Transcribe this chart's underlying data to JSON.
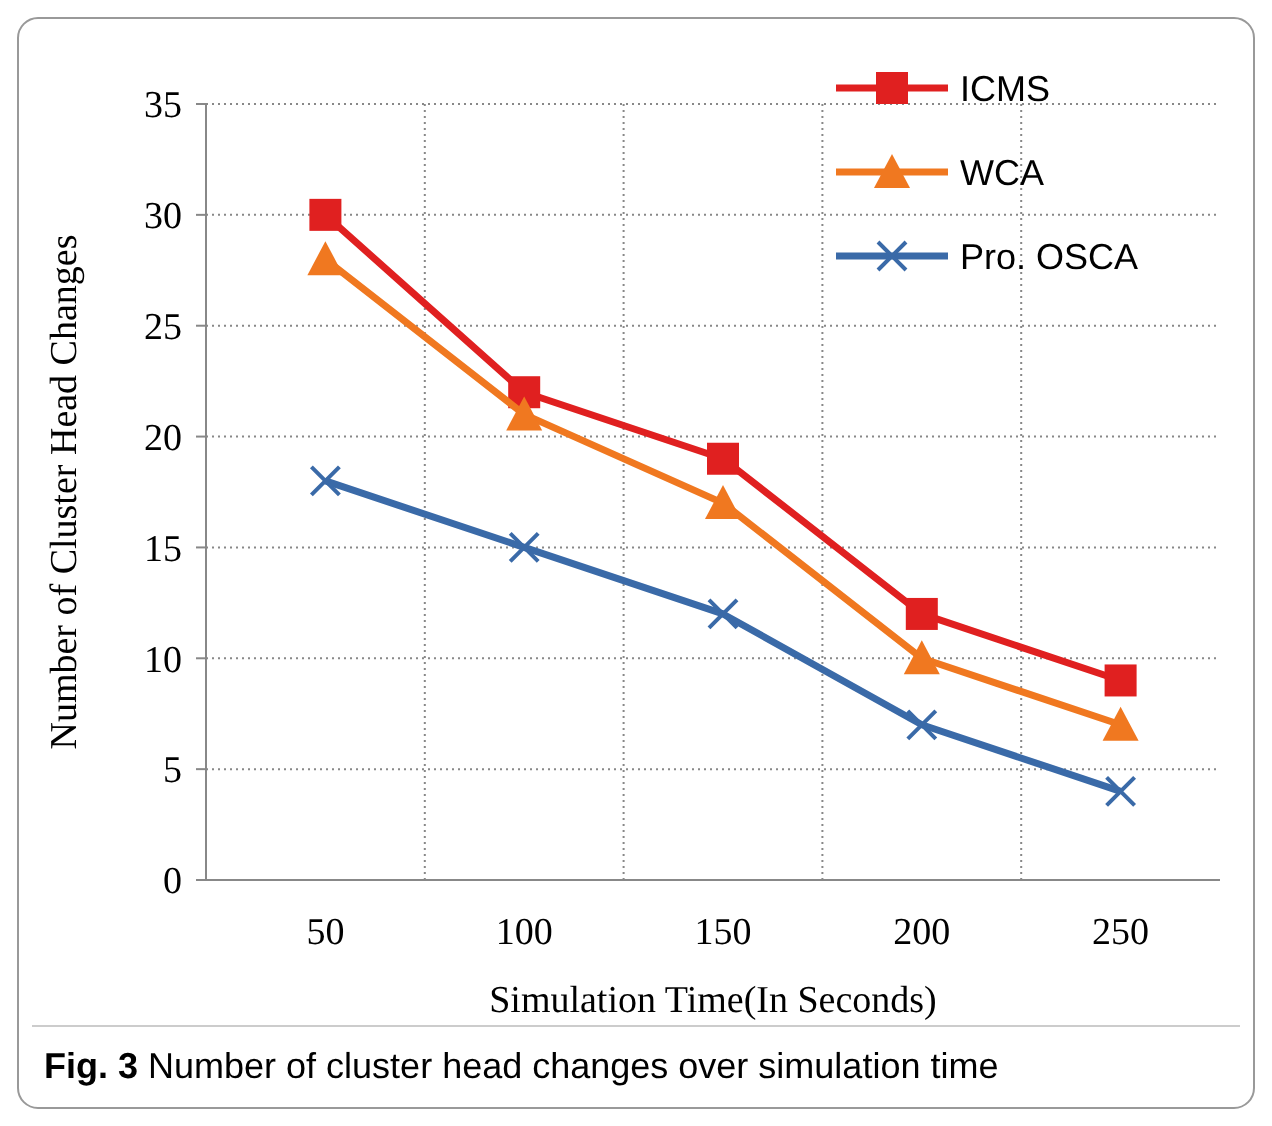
{
  "chart_data": {
    "type": "line",
    "xlabel": "Simulation Time(In Seconds)",
    "ylabel": "Number of Cluster Head Changes",
    "categories": [
      "50",
      "100",
      "150",
      "200",
      "250"
    ],
    "series": [
      {
        "name": "ICMS",
        "color": "#e02020",
        "marker": "square",
        "values": [
          30,
          22,
          19,
          12,
          9
        ]
      },
      {
        "name": "WCA",
        "color": "#f07820",
        "marker": "triangle",
        "values": [
          28,
          21,
          17,
          10,
          7
        ]
      },
      {
        "name": "Pro. OSCA",
        "color": "#3a6aa8",
        "marker": "cross",
        "values": [
          18,
          15,
          12,
          7,
          4
        ]
      }
    ],
    "ylim": [
      0,
      35
    ],
    "yticks": [
      0,
      5,
      10,
      15,
      20,
      25,
      30,
      35
    ],
    "grid": true,
    "legend": "top right",
    "line_style": "solid",
    "annotations": [
      "Fig. 3 Number of cluster head changes over simulation time"
    ]
  }
}
